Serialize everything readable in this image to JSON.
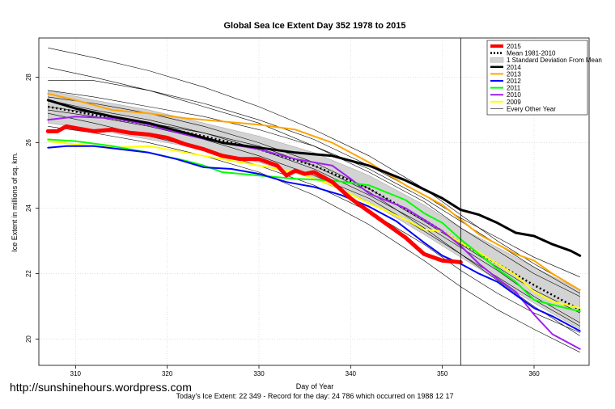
{
  "chart_data": {
    "type": "line",
    "title": "Global Sea Ice Extent Day 352 1978 to 2015",
    "xlabel": "Day of Year",
    "ylabel": "Ice Extent in millions of sq. km.",
    "xlim": [
      306,
      366
    ],
    "ylim": [
      19.2,
      29.2
    ],
    "x_ticks": [
      310,
      320,
      330,
      340,
      350,
      360
    ],
    "y_ticks": [
      20,
      22,
      24,
      26,
      28
    ],
    "grid": true,
    "marker_day": 352,
    "legend_position": "top-right",
    "footer": "Today's Ice Extent: 22 349  -  Record for the day: 24 786 which occurred on 1988 12 17",
    "band": {
      "name": "1 Standard Deviation From Mean",
      "x": [
        307,
        312,
        318,
        324,
        330,
        336,
        342,
        348,
        352,
        356,
        360,
        365
      ],
      "upper": [
        27.6,
        27.3,
        27.0,
        26.6,
        26.2,
        25.7,
        25.0,
        24.1,
        23.4,
        22.8,
        22.2,
        21.5
      ],
      "lower": [
        26.6,
        26.4,
        26.1,
        25.8,
        25.4,
        24.9,
        24.2,
        23.2,
        22.5,
        21.8,
        21.1,
        20.3
      ]
    },
    "mean": {
      "name": "Mean 1981-2010",
      "x": [
        307,
        312,
        318,
        324,
        330,
        336,
        342,
        348,
        352,
        356,
        360,
        365
      ],
      "values": [
        27.1,
        26.85,
        26.55,
        26.2,
        25.8,
        25.3,
        24.6,
        23.65,
        22.95,
        22.3,
        21.65,
        20.9
      ]
    },
    "series": [
      {
        "name": "2015",
        "color": "#ff0000",
        "width": 5,
        "x": [
          307,
          308,
          309,
          310,
          312,
          314,
          316,
          318,
          320,
          322,
          324,
          326,
          328,
          330,
          332,
          333,
          334,
          335,
          336,
          338,
          340,
          342,
          344,
          346,
          348,
          350,
          352
        ],
        "values": [
          26.35,
          26.35,
          26.5,
          26.45,
          26.35,
          26.4,
          26.3,
          26.25,
          26.15,
          25.95,
          25.8,
          25.6,
          25.5,
          25.5,
          25.3,
          25.0,
          25.15,
          25.05,
          25.1,
          24.8,
          24.3,
          23.9,
          23.5,
          23.1,
          22.6,
          22.4,
          22.35
        ]
      },
      {
        "name": "2014",
        "color": "#000000",
        "width": 3,
        "x": [
          307,
          310,
          314,
          318,
          322,
          326,
          330,
          334,
          338,
          342,
          346,
          350,
          352,
          354,
          356,
          358,
          360,
          362,
          364,
          365
        ],
        "values": [
          27.3,
          27.05,
          26.8,
          26.6,
          26.3,
          26.0,
          25.85,
          25.7,
          25.6,
          25.3,
          24.85,
          24.3,
          23.95,
          23.8,
          23.55,
          23.25,
          23.15,
          22.9,
          22.7,
          22.55
        ]
      },
      {
        "name": "2013",
        "color": "#ffa500",
        "width": 2,
        "x": [
          307,
          310,
          314,
          318,
          322,
          326,
          330,
          334,
          338,
          342,
          346,
          350,
          352,
          354,
          356,
          358,
          360,
          362,
          365
        ],
        "values": [
          27.5,
          27.3,
          27.0,
          26.9,
          26.75,
          26.65,
          26.55,
          26.4,
          26.0,
          25.4,
          24.7,
          24.1,
          23.65,
          23.2,
          22.9,
          22.6,
          22.4,
          22.0,
          21.5
        ]
      },
      {
        "name": "2012",
        "color": "#0000ff",
        "width": 2,
        "x": [
          307,
          309,
          312,
          315,
          318,
          321,
          324,
          327,
          330,
          333,
          336,
          339,
          342,
          345,
          348,
          350,
          352,
          354,
          356,
          358,
          360,
          362,
          365
        ],
        "values": [
          25.85,
          25.9,
          25.9,
          25.8,
          25.7,
          25.5,
          25.25,
          25.2,
          25.05,
          24.8,
          24.65,
          24.4,
          24.05,
          23.6,
          22.95,
          22.55,
          22.3,
          22.0,
          21.75,
          21.35,
          20.95,
          20.7,
          20.25
        ]
      },
      {
        "name": "2011",
        "color": "#00ff00",
        "width": 2,
        "x": [
          307,
          310,
          314,
          318,
          322,
          324,
          326,
          330,
          334,
          338,
          342,
          346,
          348,
          350,
          352,
          354,
          356,
          358,
          360,
          362,
          365
        ],
        "values": [
          26.1,
          26.05,
          25.9,
          25.7,
          25.45,
          25.3,
          25.1,
          25.0,
          24.9,
          24.85,
          24.7,
          24.25,
          23.85,
          23.55,
          23.05,
          22.6,
          22.15,
          21.75,
          21.2,
          21.05,
          20.85
        ]
      },
      {
        "name": "2010",
        "color": "#a020f0",
        "width": 2,
        "x": [
          307,
          310,
          314,
          318,
          322,
          326,
          330,
          334,
          338,
          340,
          342,
          346,
          350,
          352,
          354,
          356,
          358,
          360,
          362,
          365
        ],
        "values": [
          26.7,
          26.8,
          26.75,
          26.55,
          26.25,
          26.0,
          25.8,
          25.5,
          25.3,
          24.9,
          24.45,
          24.0,
          23.3,
          22.85,
          22.3,
          21.85,
          21.45,
          20.75,
          20.15,
          19.7
        ]
      },
      {
        "name": "2009",
        "color": "#ffff00",
        "width": 2,
        "x": [
          307,
          310,
          314,
          318,
          322,
          326,
          330,
          334,
          338,
          342,
          346,
          348,
          350,
          352,
          354,
          356,
          358,
          360,
          362,
          365
        ],
        "values": [
          26.05,
          25.95,
          25.85,
          25.9,
          25.7,
          25.5,
          25.3,
          25.1,
          24.7,
          24.15,
          23.65,
          23.35,
          23.3,
          22.95,
          22.65,
          22.3,
          21.95,
          21.45,
          21.15,
          20.95
        ]
      }
    ],
    "background_series_name": "Every Other Year",
    "background_series": [
      [
        28.9,
        28.6,
        28.2,
        27.7,
        27.1,
        26.4,
        25.6,
        24.6,
        23.8,
        23.0,
        22.3,
        21.5
      ],
      [
        28.3,
        28.0,
        27.6,
        27.1,
        26.6,
        25.9,
        25.1,
        24.2,
        23.4,
        22.7,
        22.0,
        21.3
      ],
      [
        27.9,
        27.9,
        27.6,
        27.2,
        26.7,
        26.1,
        25.3,
        24.4,
        23.7,
        23.1,
        22.5,
        21.9
      ],
      [
        27.6,
        27.4,
        27.1,
        26.8,
        26.4,
        25.9,
        25.2,
        24.3,
        23.6,
        22.9,
        22.2,
        21.4
      ],
      [
        27.4,
        27.2,
        26.9,
        26.5,
        26.0,
        25.4,
        24.6,
        23.6,
        22.9,
        22.2,
        21.5,
        20.8
      ],
      [
        27.1,
        26.9,
        26.6,
        26.3,
        25.9,
        25.3,
        24.5,
        23.4,
        22.6,
        21.9,
        21.2,
        20.4
      ],
      [
        26.9,
        26.6,
        26.2,
        25.8,
        25.3,
        24.7,
        23.9,
        22.9,
        22.1,
        21.4,
        20.8,
        20.2
      ],
      [
        26.5,
        26.3,
        26.0,
        25.6,
        25.1,
        24.4,
        23.5,
        22.4,
        21.6,
        20.9,
        20.3,
        19.6
      ],
      [
        27.0,
        26.8,
        26.5,
        26.1,
        25.6,
        25.0,
        24.3,
        23.3,
        22.6,
        21.8,
        21.0,
        20.1
      ],
      [
        27.3,
        27.0,
        26.7,
        26.3,
        25.8,
        25.2,
        24.4,
        23.5,
        22.8,
        22.1,
        21.3,
        20.5
      ]
    ],
    "background_x": [
      307,
      312,
      318,
      324,
      330,
      336,
      342,
      348,
      352,
      356,
      360,
      365
    ]
  },
  "watermark": "http://sunshinehours.wordpress.com"
}
